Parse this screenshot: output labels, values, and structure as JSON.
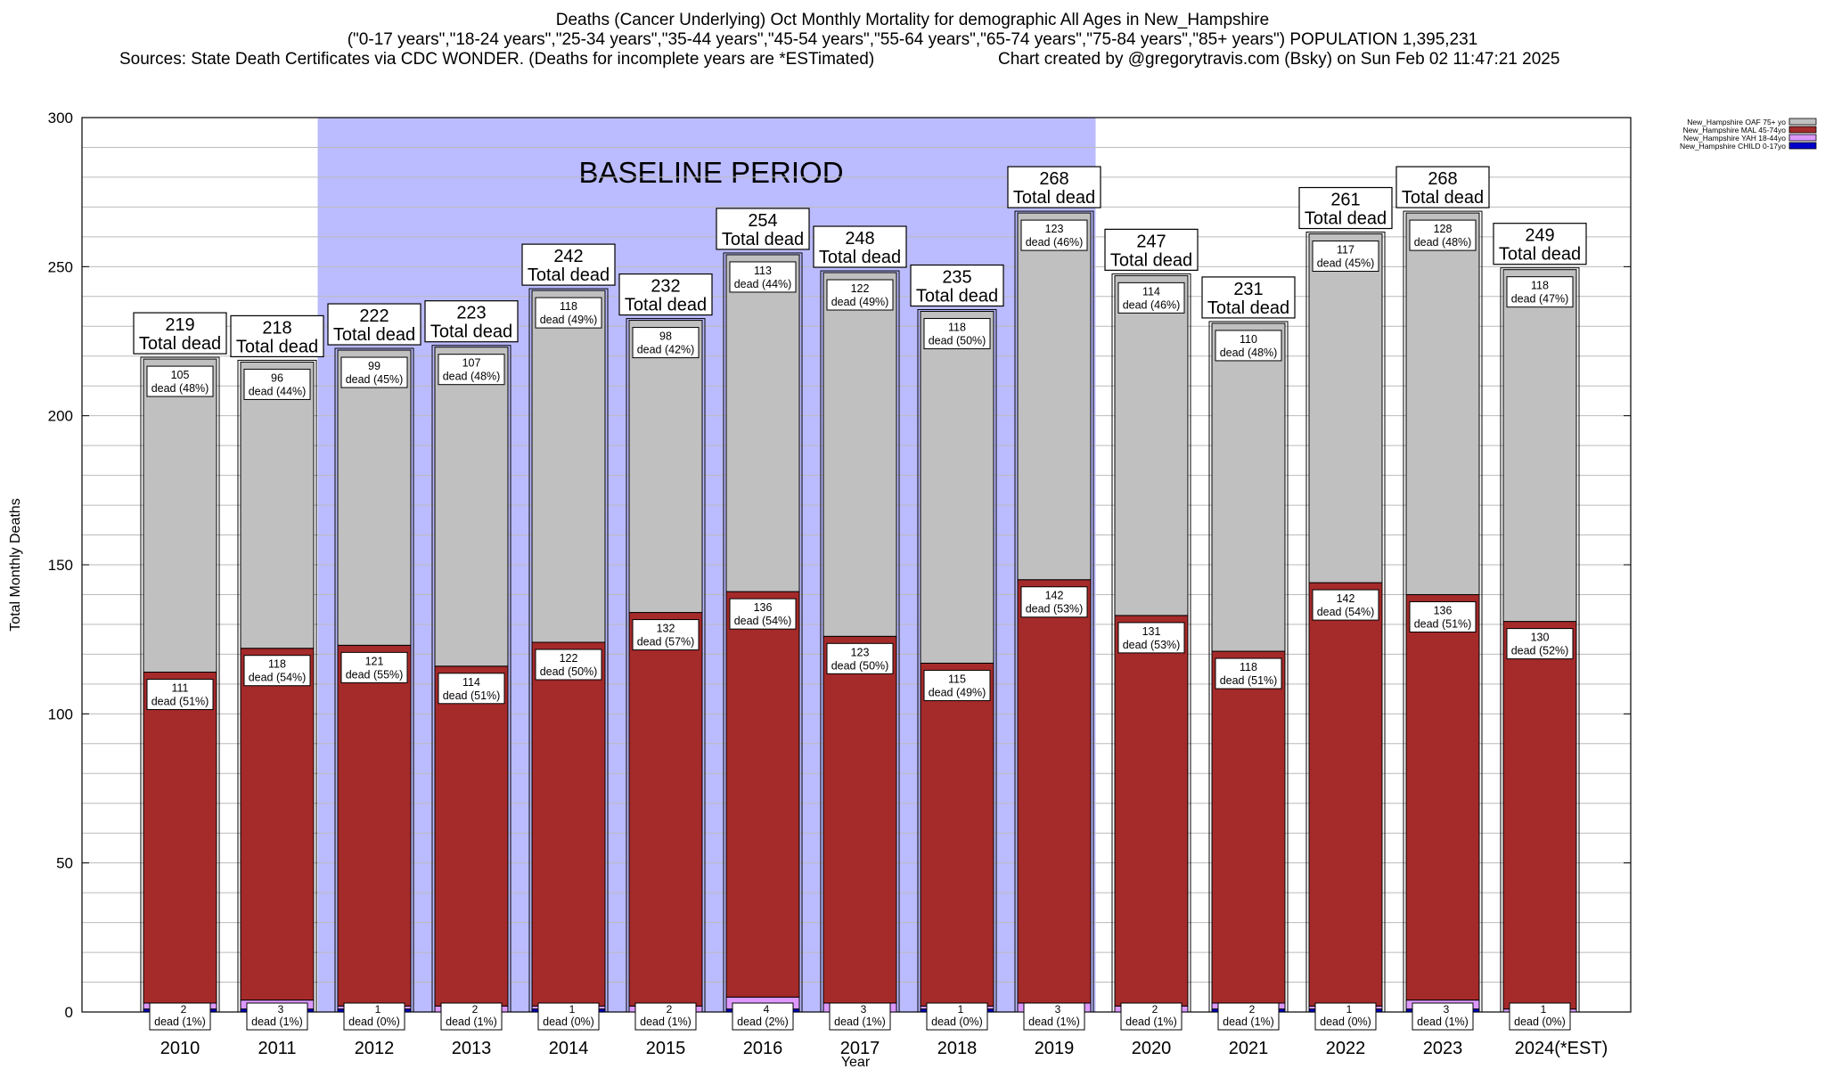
{
  "title": "Deaths (Cancer Underlying) Oct Monthly Mortality for demographic All Ages in New_Hampshire",
  "subtitle": "(\"0-17 years\",\"18-24 years\",\"25-34 years\",\"35-44 years\",\"45-54 years\",\"55-64 years\",\"65-74 years\",\"75-84 years\",\"85+ years\") POPULATION 1,395,231",
  "sources": "Sources: State Death Certificates via CDC WONDER. (Deaths for incomplete years are *ESTimated)",
  "credit": "Chart created by @gregorytravis.com (Bsky) on Sun Feb 02 11:47:21 2025",
  "colors": {
    "oaf": "#c0c0c0",
    "mal": "#a52a2a",
    "yah": "#dd99ff",
    "child": "#0000cc",
    "baseline": "#bbbbff"
  },
  "chart_data": {
    "type": "bar",
    "stacked": true,
    "xlabel": "Year",
    "ylabel": "Total Monthly Deaths",
    "ylim": [
      0,
      300
    ],
    "yticks": [
      "0",
      "50",
      "100",
      "150",
      "200",
      "250",
      "300"
    ],
    "grid": true,
    "legend_position": "top-right",
    "baseline_label": "BASELINE PERIOD",
    "baseline_range": [
      "2012",
      "2019"
    ],
    "total_label": "Total dead",
    "dead_word": "dead",
    "categories": [
      "2010",
      "2011",
      "2012",
      "2013",
      "2014",
      "2015",
      "2016",
      "2017",
      "2018",
      "2019",
      "2020",
      "2021",
      "2022",
      "2023",
      "2024(*EST)"
    ],
    "totals": [
      219,
      218,
      222,
      223,
      242,
      232,
      254,
      248,
      235,
      268,
      247,
      231,
      261,
      268,
      249
    ],
    "series": [
      {
        "name": "New_Hampshire CHILD 0-17yo",
        "values": [
          1,
          1,
          1,
          0,
          1,
          0,
          1,
          0,
          1,
          0,
          0,
          1,
          1,
          1,
          0
        ]
      },
      {
        "name": "New_Hampshire YAH 18-44yo",
        "values": [
          2,
          3,
          1,
          2,
          1,
          2,
          4,
          3,
          1,
          3,
          2,
          2,
          1,
          3,
          1
        ]
      },
      {
        "name": "New_Hampshire MAL 45-74yo",
        "values": [
          111,
          118,
          121,
          114,
          122,
          132,
          136,
          123,
          115,
          142,
          131,
          118,
          142,
          136,
          130
        ]
      },
      {
        "name": "New_Hampshire OAF 75+ yo",
        "values": [
          105,
          96,
          99,
          107,
          118,
          98,
          113,
          122,
          118,
          123,
          114,
          110,
          117,
          128,
          118
        ]
      }
    ],
    "pct_labels": {
      "yah": [
        "(1%)",
        "(1%)",
        "(0%)",
        "(1%)",
        "(0%)",
        "(1%)",
        "(2%)",
        "(1%)",
        "(0%)",
        "(1%)",
        "(1%)",
        "(1%)",
        "(0%)",
        "(1%)",
        "(0%)"
      ],
      "mal": [
        "(51%)",
        "(54%)",
        "(55%)",
        "(51%)",
        "(50%)",
        "(57%)",
        "(54%)",
        "(50%)",
        "(49%)",
        "(53%)",
        "(53%)",
        "(51%)",
        "(54%)",
        "(51%)",
        "(52%)"
      ],
      "oaf": [
        "(48%)",
        "(44%)",
        "(45%)",
        "(48%)",
        "(49%)",
        "(42%)",
        "(44%)",
        "(49%)",
        "(50%)",
        "(46%)",
        "(46%)",
        "(48%)",
        "(45%)",
        "(48%)",
        "(47%)"
      ]
    }
  }
}
